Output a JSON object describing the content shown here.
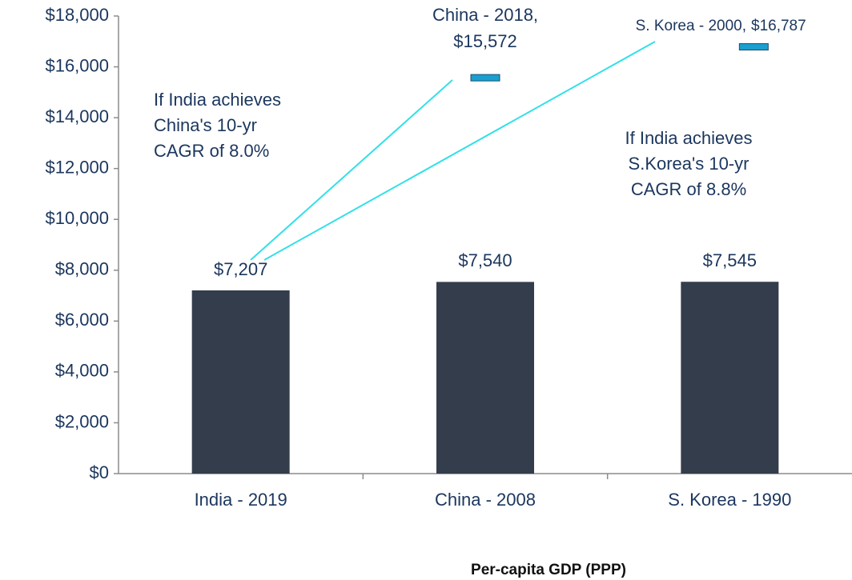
{
  "chart_data": {
    "type": "bar",
    "categories": [
      "India - 2019",
      "China - 2008",
      "S. Korea - 1990"
    ],
    "values": [
      7207,
      7540,
      7545
    ],
    "value_labels": [
      "$7,207",
      "$7,540",
      "$7,545"
    ],
    "color": "#333d4b",
    "ylim": [
      0,
      18000
    ],
    "yticks": [
      {
        "value": 0,
        "label": "$0"
      },
      {
        "value": 2000,
        "label": "$2,000"
      },
      {
        "value": 4000,
        "label": "$4,000"
      },
      {
        "value": 6000,
        "label": "$6,000"
      },
      {
        "value": 8000,
        "label": "$8,000"
      },
      {
        "value": 10000,
        "label": "$10,000"
      },
      {
        "value": 12000,
        "label": "$12,000"
      },
      {
        "value": 14000,
        "label": "$14,000"
      },
      {
        "value": 16000,
        "label": "$16,000"
      },
      {
        "value": 18000,
        "label": "$18,000"
      }
    ],
    "grid": false,
    "xlabel": "Per-capita GDP (PPP)",
    "targets": [
      {
        "label": "China - 2018,",
        "value": 15572,
        "value_label": "$15,572",
        "color": "#1a9fd0"
      },
      {
        "label": "S. Korea - 2000,",
        "value": 16787,
        "value_label": "$16,787",
        "color": "#1a9fd0"
      }
    ],
    "annotations": [
      [
        "If India achieves",
        "China's 10-yr",
        "CAGR  of 8.0%"
      ],
      [
        "If India achieves",
        "S.Korea's 10-yr",
        "CAGR  of 8.8%"
      ]
    ]
  }
}
